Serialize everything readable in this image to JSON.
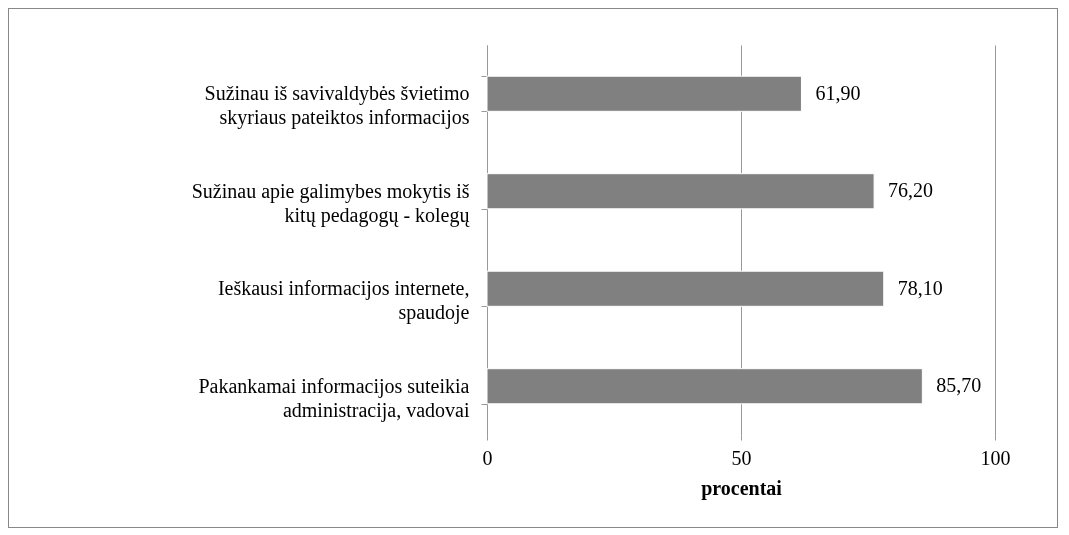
{
  "chart_data": {
    "type": "bar",
    "orientation": "horizontal",
    "xlabel": "procentai",
    "categories": [
      "Sužinau iš savivaldybės švietimo skyriaus pateiktos informacijos",
      "Sužinau apie galimybes mokytis iš kitų pedagogų - kolegų",
      "Ieškausi informacijos internete, spaudoje",
      "Pakankamai informacijos suteikia administracija, vadovai"
    ],
    "values": [
      61.9,
      76.2,
      78.1,
      85.7
    ],
    "value_labels": [
      "61,90",
      "76,20",
      "78,10",
      "85,70"
    ],
    "color": "#808080",
    "xlim": [
      0,
      100
    ],
    "xticks": [
      0,
      50,
      100
    ],
    "grid": "x"
  }
}
